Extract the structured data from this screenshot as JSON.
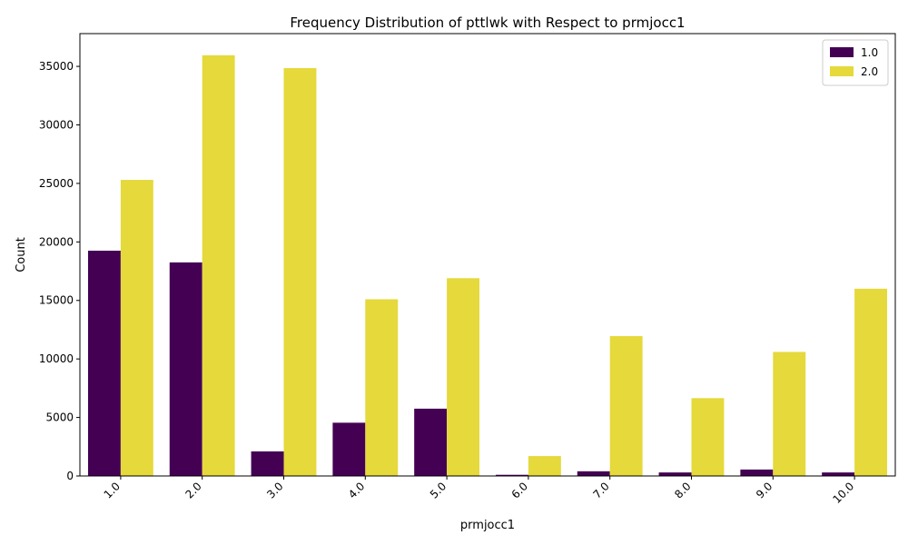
{
  "chart_data": {
    "type": "bar",
    "title": "Frequency Distribution of pttlwk with Respect to prmjocc1",
    "xlabel": "prmjocc1",
    "ylabel": "Count",
    "categories": [
      "1.0",
      "2.0",
      "3.0",
      "4.0",
      "5.0",
      "6.0",
      "7.0",
      "8.0",
      "9.0",
      "10.0"
    ],
    "series": [
      {
        "name": "1.0",
        "color": "#440154",
        "values": [
          19250,
          18250,
          2100,
          4550,
          5750,
          100,
          400,
          300,
          550,
          300
        ]
      },
      {
        "name": "2.0",
        "color": "#e5d93b",
        "values": [
          25300,
          35950,
          34850,
          15100,
          16900,
          1700,
          11950,
          6650,
          10600,
          16000
        ]
      }
    ],
    "ylim": [
      0,
      37800
    ],
    "yticks": [
      0,
      5000,
      10000,
      15000,
      20000,
      25000,
      30000,
      35000
    ],
    "xtick_rotation": 45,
    "grid": false,
    "legend_position": "top-right"
  }
}
